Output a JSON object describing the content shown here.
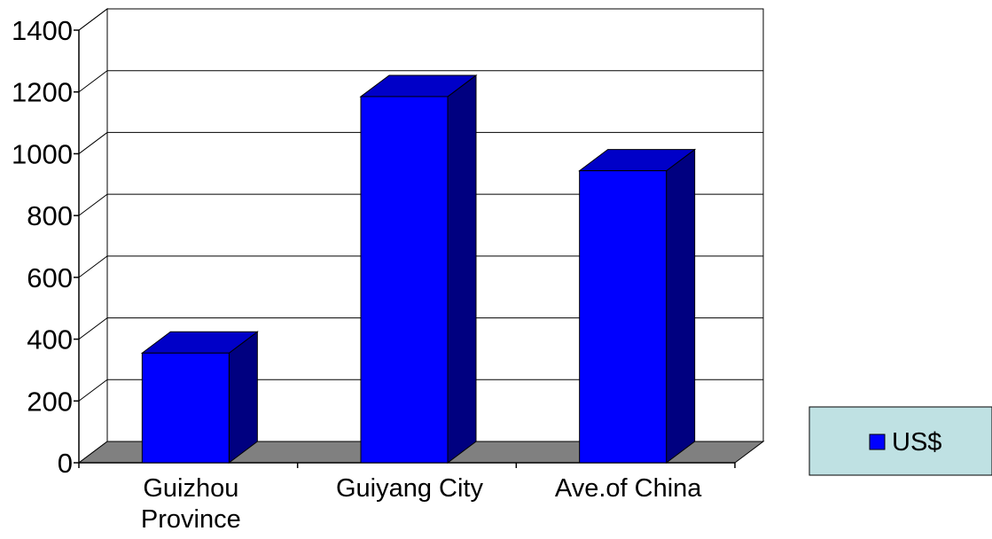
{
  "chart_data": {
    "type": "bar",
    "categories": [
      "Guizhou Province",
      "Guiyang City",
      "Ave.of China"
    ],
    "category_lines": [
      [
        "Guizhou",
        "Province"
      ],
      [
        "Guiyang City"
      ],
      [
        "Ave.of China"
      ]
    ],
    "series": [
      {
        "name": "US$",
        "values": [
          355,
          1185,
          945
        ],
        "color": "#0000ff",
        "side_color": "#000080",
        "top_color": "#0000c8"
      }
    ],
    "ylim": [
      0,
      1400
    ],
    "yticks": [
      "0",
      "200",
      "400",
      "600",
      "800",
      "1000",
      "1200",
      "1400"
    ],
    "xlabel": "",
    "ylabel": "",
    "title": "",
    "grid": true,
    "three_d": true,
    "floor_color": "#808080",
    "legend": {
      "placement": "right",
      "label": "US$",
      "background": "#bfe1e3"
    }
  }
}
